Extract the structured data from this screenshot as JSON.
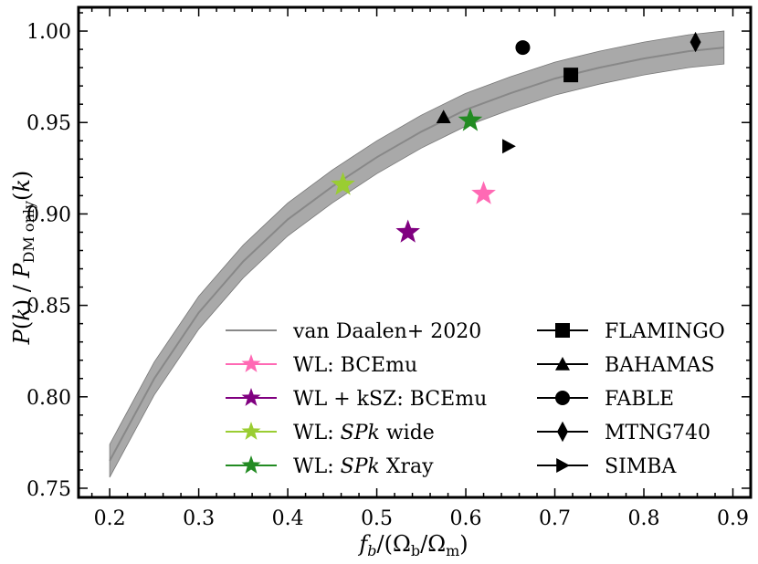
{
  "chart_data": {
    "type": "scatter",
    "xlabel": "f_b/(Ω_b/Ω_m)",
    "ylabel": "P(k) / P_DM only(k)",
    "xlim": [
      0.165,
      0.92
    ],
    "ylim": [
      0.745,
      1.013
    ],
    "x_ticks": [
      0.2,
      0.3,
      0.4,
      0.5,
      0.6,
      0.7,
      0.8,
      0.9
    ],
    "x_tick_labels": [
      "0.2",
      "0.3",
      "0.4",
      "0.5",
      "0.6",
      "0.7",
      "0.8",
      "0.9"
    ],
    "y_ticks": [
      0.75,
      0.8,
      0.85,
      0.9,
      0.95,
      1.0
    ],
    "y_tick_labels": [
      "0.75",
      "0.80",
      "0.85",
      "0.90",
      "0.95",
      "1.00"
    ],
    "fit_curve": {
      "name": "van Daalen+ 2020",
      "color": "#888888",
      "band_color": "#a9a9a9",
      "x": [
        0.2,
        0.25,
        0.3,
        0.35,
        0.4,
        0.45,
        0.5,
        0.55,
        0.6,
        0.65,
        0.7,
        0.75,
        0.8,
        0.85,
        0.89
      ],
      "y": [
        0.765,
        0.81,
        0.846,
        0.874,
        0.897,
        0.915,
        0.931,
        0.945,
        0.957,
        0.966,
        0.974,
        0.98,
        0.985,
        0.989,
        0.991
      ],
      "band_halfwidth": 0.009
    },
    "star_series": [
      {
        "name": "WL: BCEmu",
        "label_parts": [
          {
            "text": "WL: BCEmu",
            "italic": false
          }
        ],
        "color": "#ff69b4",
        "x": 0.62,
        "y": 0.911
      },
      {
        "name": "WL + kSZ: BCEmu",
        "label_parts": [
          {
            "text": "WL + kSZ: BCEmu",
            "italic": false
          }
        ],
        "color": "#800080",
        "x": 0.535,
        "y": 0.89
      },
      {
        "name": "WL: SPk wide",
        "label_parts": [
          {
            "text": "WL: ",
            "italic": false
          },
          {
            "text": "SPk",
            "italic": true
          },
          {
            "text": " wide",
            "italic": false
          }
        ],
        "color": "#9acd32",
        "x": 0.462,
        "y": 0.916
      },
      {
        "name": "WL: SPk Xray",
        "label_parts": [
          {
            "text": "WL: ",
            "italic": false
          },
          {
            "text": "SPk",
            "italic": true
          },
          {
            "text": " Xray",
            "italic": false
          }
        ],
        "color": "#228b22",
        "x": 0.605,
        "y": 0.951
      }
    ],
    "simulations": [
      {
        "name": "FLAMINGO",
        "marker": "square",
        "color": "#000000",
        "x": 0.718,
        "y": 0.976
      },
      {
        "name": "BAHAMAS",
        "marker": "triangle",
        "color": "#000000",
        "x": 0.575,
        "y": 0.953
      },
      {
        "name": "FABLE",
        "marker": "circle",
        "color": "#000000",
        "x": 0.664,
        "y": 0.991
      },
      {
        "name": "MTNG740",
        "marker": "diamond",
        "color": "#000000",
        "x": 0.858,
        "y": 0.994
      },
      {
        "name": "SIMBA",
        "marker": "triangle-right",
        "color": "#000000",
        "x": 0.648,
        "y": 0.937
      }
    ],
    "legend_placement": "lower-center"
  }
}
